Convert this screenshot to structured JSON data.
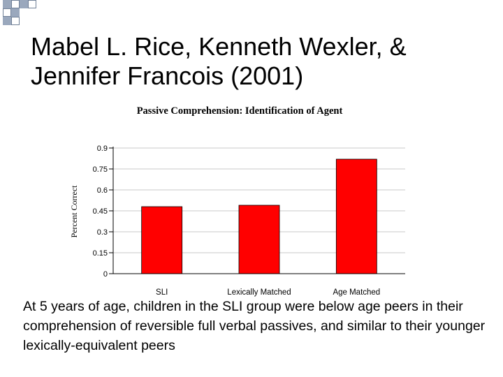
{
  "slide": {
    "title_line1": "Mabel L. Rice, Kenneth Wexler, &",
    "title_line2": "Jennifer Francois (2001)",
    "caption": "At 5 years of age, children in the SLI group were below age peers in their comprehension of reversible full verbal passives, and similar to their younger lexically-equivalent peers",
    "accent_color": "#6f7f96"
  },
  "chart_data": {
    "type": "bar",
    "title": "Passive Comprehension: Identification of Agent",
    "xlabel": "",
    "ylabel": "Percent Correct",
    "categories": [
      "SLI",
      "Lexically Matched",
      "Age Matched"
    ],
    "values": [
      0.48,
      0.49,
      0.82
    ],
    "ylim": [
      0,
      0.9
    ],
    "yticks": [
      "0",
      "0.15",
      "0.3",
      "0.45",
      "0.6",
      "0.75",
      "0.9"
    ],
    "bar_color": "#ff0000",
    "grid": true,
    "legend": "none"
  }
}
